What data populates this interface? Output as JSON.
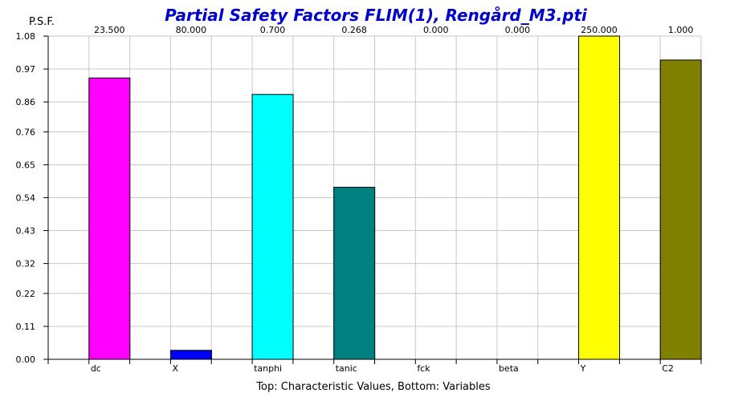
{
  "chart_data": {
    "type": "bar",
    "title": "Partial Safety Factors FLIM(1), Rengård_M3.pti",
    "ylabel": "P.S.F.",
    "xlabel": "Top: Characteristic Values, Bottom: Variables",
    "ylim": [
      0,
      1.08
    ],
    "y_ticks": [
      "0.00",
      "0.11",
      "0.22",
      "0.32",
      "0.43",
      "0.54",
      "0.65",
      "0.76",
      "0.86",
      "0.97",
      "1.08"
    ],
    "grid": true,
    "categories": [
      "dc",
      "X",
      "tanphi",
      "tanic",
      "fck",
      "beta",
      "Y",
      "C2"
    ],
    "characteristic_values": [
      "23.500",
      "80.000",
      "0.700",
      "0.268",
      "0.000",
      "0.000",
      "250.000",
      "1.000"
    ],
    "values": [
      0.94,
      0.03,
      0.885,
      0.575,
      0,
      0,
      1.08,
      1.0
    ],
    "colors": [
      "#ff00ff",
      "#0000ff",
      "#00ffff",
      "#008080",
      "#808080",
      "#808080",
      "#ffff00",
      "#808000"
    ]
  }
}
